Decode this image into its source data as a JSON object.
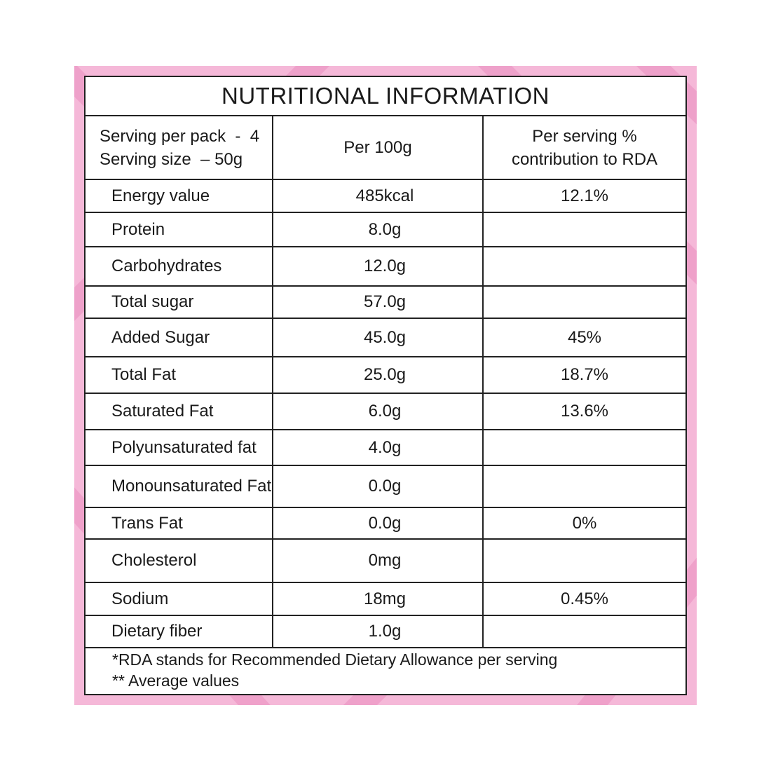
{
  "title": "NUTRITIONAL INFORMATION",
  "header": {
    "serving_line1": "Serving per pack  -  4",
    "serving_line2": "Serving size  – 50g",
    "col_per100": "Per 100g",
    "col_rda_line1": "Per serving %",
    "col_rda_line2": "contribution to RDA"
  },
  "rows": [
    {
      "label": "Energy value",
      "per100": "485kcal",
      "rda": "12.1%"
    },
    {
      "label": "Protein",
      "per100": "8.0g",
      "rda": ""
    },
    {
      "label": "Carbohydrates",
      "per100": "12.0g",
      "rda": ""
    },
    {
      "label": "Total sugar",
      "per100": "57.0g",
      "rda": ""
    },
    {
      "label": "Added Sugar",
      "per100": "45.0g",
      "rda": "45%"
    },
    {
      "label": "Total Fat",
      "per100": "25.0g",
      "rda": "18.7%"
    },
    {
      "label": "Saturated Fat",
      "per100": "6.0g",
      "rda": "13.6%"
    },
    {
      "label": "Polyunsaturated fat",
      "per100": "4.0g",
      "rda": ""
    },
    {
      "label": "Monounsaturated Fat",
      "per100": "0.0g",
      "rda": ""
    },
    {
      "label": "Trans Fat",
      "per100": "0.0g",
      "rda": "0%"
    },
    {
      "label": "Cholesterol",
      "per100": "0mg",
      "rda": ""
    },
    {
      "label": "Sodium",
      "per100": "18mg",
      "rda": "0.45%"
    },
    {
      "label": "Dietary fiber",
      "per100": "1.0g",
      "rda": ""
    }
  ],
  "footnotes": [
    "*RDA stands for Recommended Dietary Allowance per serving",
    "** Average values"
  ],
  "colors": {
    "frame_pink": "#f5b8d8",
    "frame_stripe": "#ee9fc9",
    "border": "#222222"
  }
}
